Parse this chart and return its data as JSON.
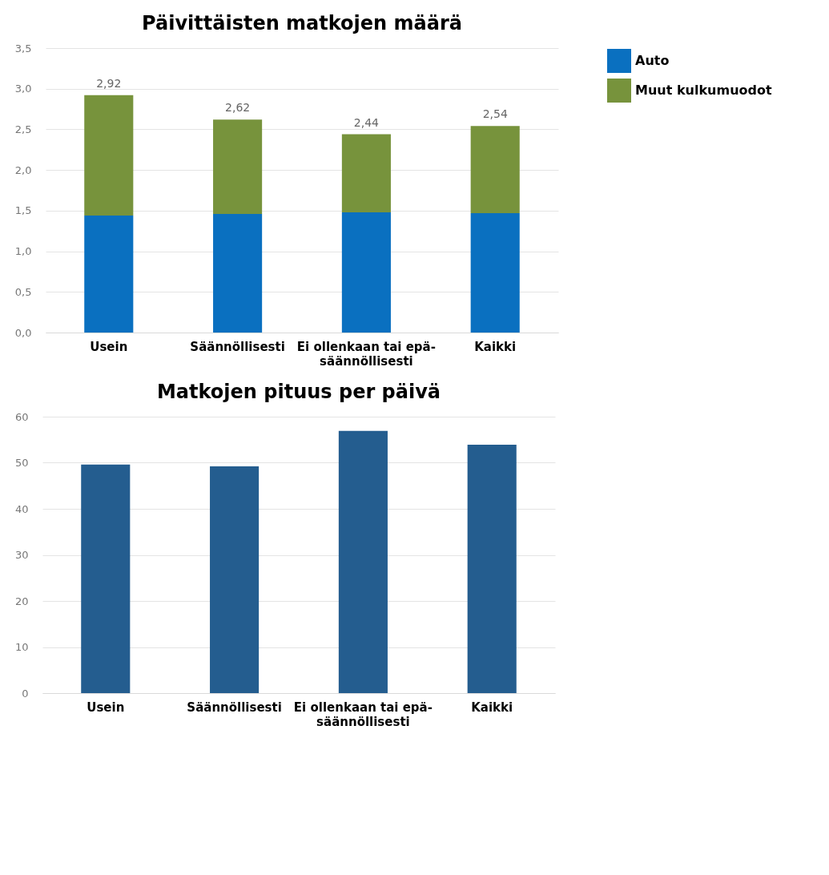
{
  "chart_data": [
    {
      "type": "bar",
      "title": "Päivittäisten matkojen määrä",
      "categories": [
        "Usein",
        "Säännöllisesti",
        "Ei ollenkaan tai epä-\nsäännöllisesti",
        "Kaikki"
      ],
      "stacked": true,
      "series": [
        {
          "name": "Auto",
          "color": "#0a70c0",
          "values": [
            1.44,
            1.46,
            1.48,
            1.47
          ]
        },
        {
          "name": "Muut kulkumuodot",
          "color": "#77933c",
          "values": [
            1.48,
            1.16,
            0.96,
            1.07
          ]
        }
      ],
      "totals": [
        "2,92",
        "2,62",
        "2,44",
        "2,54"
      ],
      "ylim": [
        0,
        3.5
      ],
      "yticks": [
        {
          "value": 0,
          "label": "0,0"
        },
        {
          "value": 0.5,
          "label": "0,5"
        },
        {
          "value": 1,
          "label": "1,0"
        },
        {
          "value": 1.5,
          "label": "1,5"
        },
        {
          "value": 2,
          "label": "2,0"
        },
        {
          "value": 2.5,
          "label": "2,5"
        },
        {
          "value": 3,
          "label": "3,0"
        },
        {
          "value": 3.5,
          "label": "3,5"
        }
      ],
      "grid": "y",
      "legend": "top right"
    },
    {
      "type": "bar",
      "title": "Matkojen pituus per päivä",
      "categories": [
        "Usein",
        "Säännöllisesti",
        "Ei ollenkaan tai epä-\nsäännöllisesti",
        "Kaikki"
      ],
      "series": [
        {
          "color": "#245d8f",
          "values": [
            49.6,
            49.2,
            56.9,
            53.9
          ]
        }
      ],
      "ylim": [
        0,
        60
      ],
      "yticks": [
        0,
        10,
        20,
        30,
        40,
        50,
        60
      ],
      "grid": "y"
    }
  ]
}
